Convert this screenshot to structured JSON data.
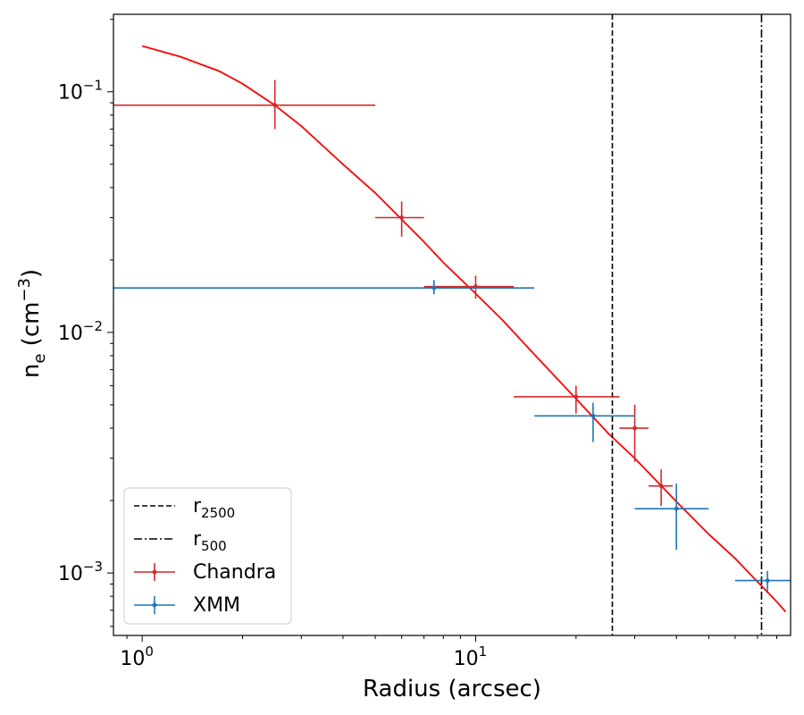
{
  "chart_data": {
    "type": "scatter",
    "title": "",
    "xlabel": "Radius (arcsec)",
    "ylabel_main": "n",
    "ylabel_sub": "e",
    "ylabel_unit_open": " (cm",
    "ylabel_unit_sup": "−3",
    "ylabel_unit_close": ")",
    "xscale": "log",
    "yscale": "log",
    "xlim": [
      0.82,
      88
    ],
    "ylim": [
      0.00055,
      0.21
    ],
    "x_major_ticks": [
      {
        "value": 1,
        "base": "10",
        "exp": "0"
      },
      {
        "value": 10,
        "base": "10",
        "exp": "1"
      }
    ],
    "y_major_ticks": [
      {
        "value": 0.1,
        "base": "10",
        "exp": "−1"
      },
      {
        "value": 0.01,
        "base": "10",
        "exp": "−2"
      },
      {
        "value": 0.001,
        "base": "10",
        "exp": "−3"
      }
    ],
    "series": [
      {
        "name": "Chandra",
        "color": "#d62728",
        "points": [
          {
            "x": 2.5,
            "y": 0.088,
            "xerr": [
              0.8,
              5.0
            ],
            "yerr": [
              0.07,
              0.112
            ]
          },
          {
            "x": 6.0,
            "y": 0.03,
            "xerr": [
              5.0,
              7.0
            ],
            "yerr": [
              0.025,
              0.035
            ]
          },
          {
            "x": 10.0,
            "y": 0.0155,
            "xerr": [
              7.0,
              13.0
            ],
            "yerr": [
              0.0138,
              0.0172
            ]
          },
          {
            "x": 20.0,
            "y": 0.0054,
            "xerr": [
              13.0,
              27.0
            ],
            "yerr": [
              0.0046,
              0.006
            ]
          },
          {
            "x": 30.0,
            "y": 0.004,
            "xerr": [
              27.0,
              33.0
            ],
            "yerr": [
              0.0029,
              0.005
            ]
          },
          {
            "x": 36.0,
            "y": 0.0023,
            "xerr": [
              33.0,
              39.0
            ],
            "yerr": [
              0.0019,
              0.0027
            ]
          }
        ]
      },
      {
        "name": "XMM",
        "color": "#1f77b4",
        "points": [
          {
            "x": 7.5,
            "y": 0.0153,
            "xerr": [
              0.8,
              15.0
            ],
            "yerr": [
              0.0144,
              0.0165
            ]
          },
          {
            "x": 22.5,
            "y": 0.0045,
            "xerr": [
              15.0,
              30.0
            ],
            "yerr": [
              0.0035,
              0.0051
            ]
          },
          {
            "x": 40.0,
            "y": 0.00185,
            "xerr": [
              30.0,
              50.0
            ],
            "yerr": [
              0.00125,
              0.00235
            ]
          },
          {
            "x": 75.0,
            "y": 0.00093,
            "xerr": [
              60.0,
              92.0
            ],
            "yerr": [
              0.00084,
              0.00102
            ]
          }
        ]
      }
    ],
    "model": {
      "name": "model",
      "color": "#ff0000",
      "x": [
        1.0,
        1.3,
        1.7,
        2.0,
        2.5,
        3.0,
        4.0,
        5.0,
        6.0,
        7.0,
        8.0,
        10.0,
        12.0,
        15.0,
        20.0,
        25.0,
        30.0,
        40.0,
        50.0,
        60.0,
        70.0,
        80.0,
        85.0
      ],
      "y": [
        0.155,
        0.14,
        0.122,
        0.108,
        0.088,
        0.072,
        0.05,
        0.038,
        0.0295,
        0.0238,
        0.0195,
        0.0145,
        0.0113,
        0.0081,
        0.0053,
        0.0038,
        0.003,
        0.00198,
        0.00145,
        0.00115,
        0.00092,
        0.00076,
        0.00069
      ]
    },
    "vlines": [
      {
        "name": "r2500",
        "label_main": "r",
        "label_sub": "2500",
        "x": 25.7,
        "style": "dashed"
      },
      {
        "name": "r500",
        "label_main": "r",
        "label_sub": "500",
        "x": 72.0,
        "style": "dashdot"
      }
    ],
    "legend": {
      "position": "lower-left",
      "entries": [
        {
          "label_main": "r",
          "label_sub": "2500",
          "kind": "dashed"
        },
        {
          "label_main": "r",
          "label_sub": "500",
          "kind": "dashdot"
        },
        {
          "label_main": "Chandra",
          "label_sub": "",
          "kind": "errorbar",
          "color": "#d62728"
        },
        {
          "label_main": "XMM",
          "label_sub": "",
          "kind": "errorbar",
          "color": "#1f77b4"
        }
      ]
    }
  }
}
